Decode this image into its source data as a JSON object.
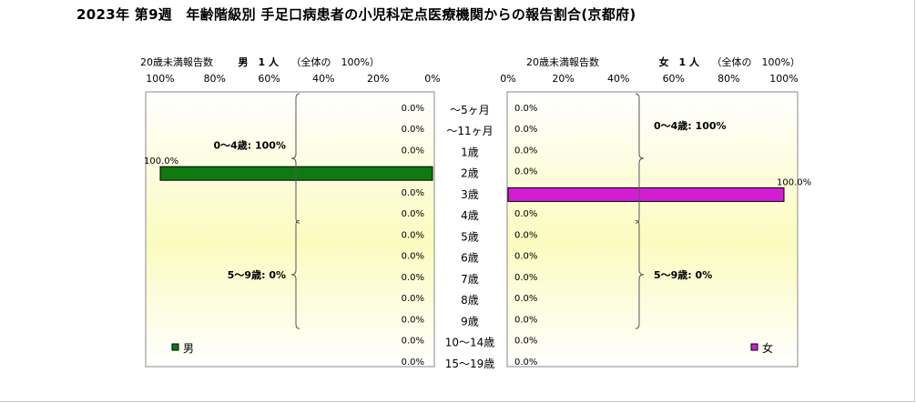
{
  "chart_data": {
    "type": "bar",
    "title": "2023年 第9週　年齢階級別 手足口病患者の小児科定点医療機関からの報告割合(京都府)",
    "categories": [
      "～5ヶ月",
      "～11ヶ月",
      "1歳",
      "2歳",
      "3歳",
      "4歳",
      "5歳",
      "6歳",
      "7歳",
      "8歳",
      "9歳",
      "10～14歳",
      "15～19歳"
    ],
    "x_ticks": [
      "0%",
      "20%",
      "40%",
      "60%",
      "80%",
      "100%"
    ],
    "xlim": [
      0,
      100
    ],
    "grid": false,
    "panels": [
      {
        "side": "left",
        "axis_direction": "reversed",
        "header_label": "20歳未満報告数",
        "header_count": "男　1 人",
        "header_share": "（全体の　100%）",
        "legend": "男",
        "legend_position": "bottom-left",
        "color": "#0f7a0f",
        "values": [
          0,
          0,
          0,
          100,
          0,
          0,
          0,
          0,
          0,
          0,
          0,
          0,
          0
        ],
        "value_labels": [
          "0.0%",
          "0.0%",
          "0.0%",
          "100.0%",
          "0.0%",
          "0.0%",
          "0.0%",
          "0.0%",
          "0.0%",
          "0.0%",
          "0.0%",
          "0.0%",
          "0.0%"
        ],
        "groups": [
          {
            "label": "0～4歳: 100%",
            "from": 0,
            "to": 5
          },
          {
            "label": "5～9歳: 0%",
            "from": 6,
            "to": 10
          }
        ]
      },
      {
        "side": "right",
        "axis_direction": "normal",
        "header_label": "20歳未満報告数",
        "header_count": "女　1 人",
        "header_share": "（全体の　100%）",
        "legend": "女",
        "legend_position": "bottom-right",
        "color": "#d21ed2",
        "values": [
          0,
          0,
          0,
          0,
          100,
          0,
          0,
          0,
          0,
          0,
          0,
          0,
          0
        ],
        "value_labels": [
          "0.0%",
          "0.0%",
          "0.0%",
          "0.0%",
          "100.0%",
          "0.0%",
          "0.0%",
          "0.0%",
          "0.0%",
          "0.0%",
          "0.0%",
          "0.0%",
          "0.0%"
        ],
        "groups": [
          {
            "label": "0～4歳: 100%",
            "from": 0,
            "to": 5
          },
          {
            "label": "5～9歳: 0%",
            "from": 6,
            "to": 10
          }
        ]
      }
    ]
  }
}
